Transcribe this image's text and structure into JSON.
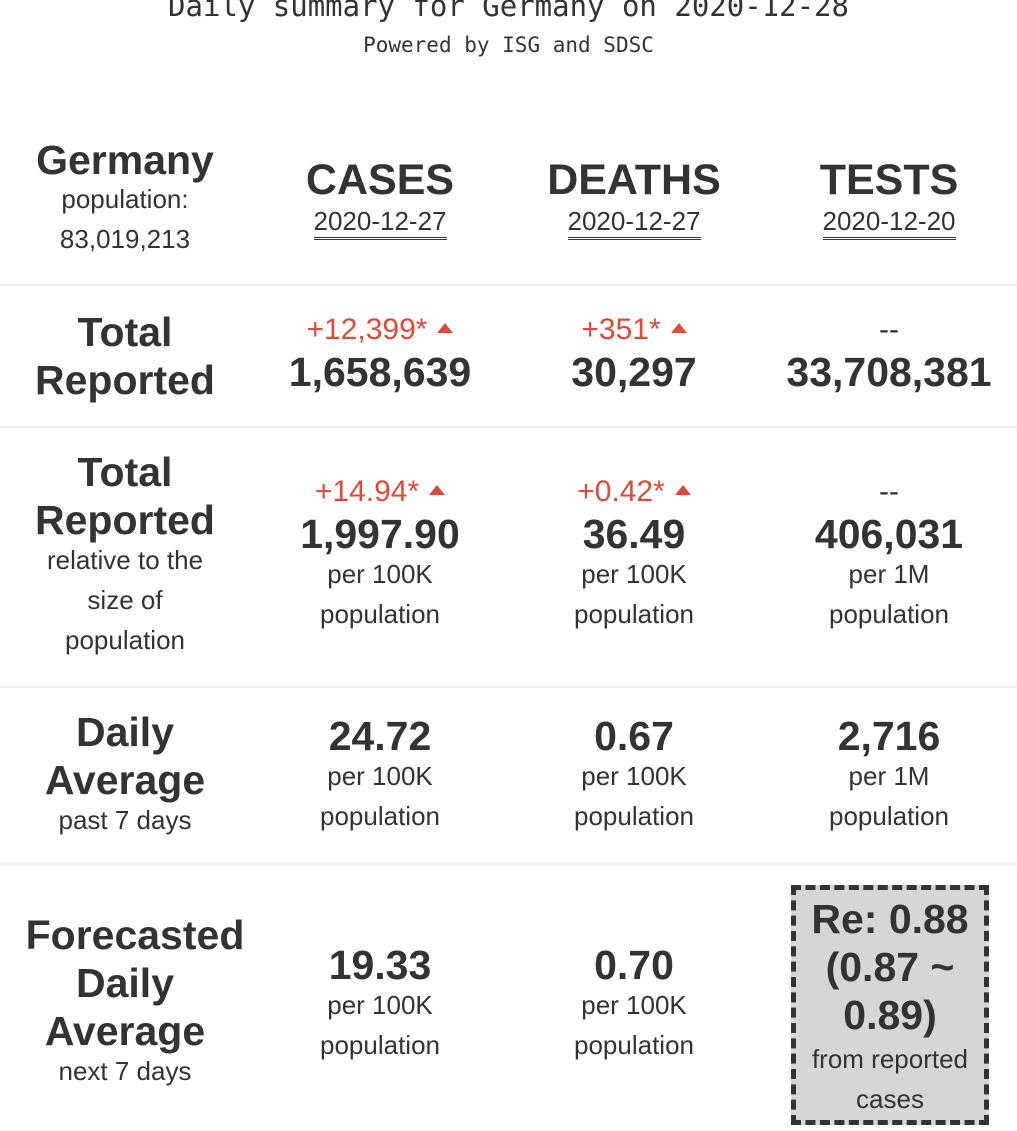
{
  "header": {
    "title": "Daily summary for Germany on 2020-12-28",
    "subtitle": "Powered by ISG and SDSC"
  },
  "columns": {
    "region": {
      "name": "Germany",
      "population_label": "population:",
      "population_value": "83,019,213"
    },
    "cases": {
      "label": "CASES",
      "date": "2020-12-27"
    },
    "deaths": {
      "label": "DEATHS",
      "date": "2020-12-27"
    },
    "tests": {
      "label": "TESTS",
      "date": "2020-12-20"
    }
  },
  "rows": {
    "total_reported": {
      "label_line1": "Total",
      "label_line2": "Reported",
      "cases": {
        "delta": "+12,399*",
        "value": "1,658,639"
      },
      "deaths": {
        "delta": "+351*",
        "value": "30,297"
      },
      "tests": {
        "delta": "--",
        "value": "33,708,381"
      }
    },
    "relative": {
      "label_line1": "Total",
      "label_line2": "Reported",
      "sub_line1": "relative to the",
      "sub_line2": "size of",
      "sub_line3": "population",
      "cases": {
        "delta": "+14.94*",
        "value": "1,997.90",
        "unit1": "per 100K",
        "unit2": "population"
      },
      "deaths": {
        "delta": "+0.42*",
        "value": "36.49",
        "unit1": "per 100K",
        "unit2": "population"
      },
      "tests": {
        "delta": "--",
        "value": "406,031",
        "unit1": "per 1M",
        "unit2": "population"
      }
    },
    "daily_average": {
      "label_line1": "Daily",
      "label_line2": "Average",
      "sub": "past 7 days",
      "cases": {
        "value": "24.72",
        "unit1": "per 100K",
        "unit2": "population"
      },
      "deaths": {
        "value": "0.67",
        "unit1": "per 100K",
        "unit2": "population"
      },
      "tests": {
        "value": "2,716",
        "unit1": "per 1M",
        "unit2": "population"
      }
    },
    "forecast": {
      "label_line1": "Forecasted",
      "label_line2": "Daily",
      "label_line3": "Average",
      "sub": "next 7 days",
      "cases": {
        "value": "19.33",
        "unit1": "per 100K",
        "unit2": "population"
      },
      "deaths": {
        "value": "0.70",
        "unit1": "per 100K",
        "unit2": "population"
      },
      "re": {
        "line1": "Re: 0.88",
        "line2": "(0.87 ~",
        "line3": "0.89)",
        "from1": "from reported",
        "from2": "cases"
      }
    }
  },
  "colors": {
    "increase": "#e04a3a",
    "text": "#333333",
    "re_box": "#d6d6d6"
  },
  "icons": {
    "increase": "triangle-up-icon"
  }
}
